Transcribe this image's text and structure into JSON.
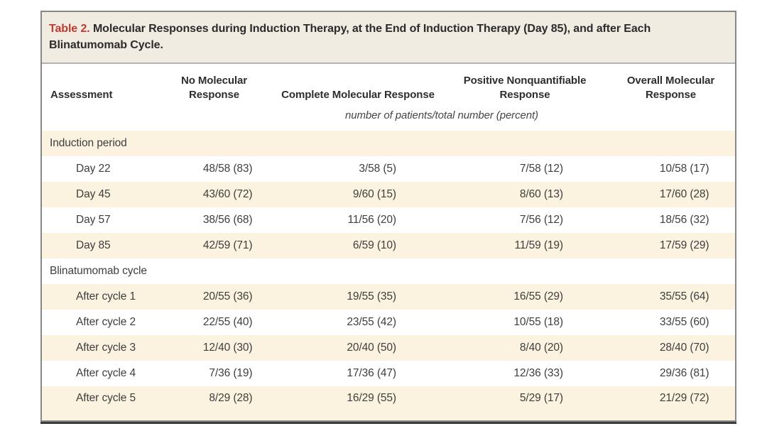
{
  "title": {
    "label": "Table 2.",
    "text": "Molecular Responses during Induction Therapy, at the End of Induction Therapy (Day 85), and after Each Blinatumomab Cycle."
  },
  "table": {
    "columns": [
      "Assessment",
      "No Molecular Response",
      "Complete Molecular Response",
      "Positive Nonquantifiable Response",
      "Overall Molecular Response"
    ],
    "units_note": "number of patients/total number (percent)",
    "rows": [
      {
        "type": "section",
        "label": "Induction period"
      },
      {
        "type": "data",
        "label": "Day 22",
        "values": [
          "48/58 (83)",
          "3/58 (5)",
          "7/58 (12)",
          "10/58 (17)"
        ]
      },
      {
        "type": "data",
        "label": "Day 45",
        "values": [
          "43/60 (72)",
          "9/60 (15)",
          "8/60 (13)",
          "17/60 (28)"
        ]
      },
      {
        "type": "data",
        "label": "Day 57",
        "values": [
          "38/56 (68)",
          "11/56 (20)",
          "7/56 (12)",
          "18/56 (32)"
        ]
      },
      {
        "type": "data",
        "label": "Day 85",
        "values": [
          "42/59 (71)",
          "6/59 (10)",
          "11/59 (19)",
          "17/59 (29)"
        ]
      },
      {
        "type": "section",
        "label": "Blinatumomab cycle"
      },
      {
        "type": "data",
        "label": "After cycle 1",
        "values": [
          "20/55 (36)",
          "19/55 (35)",
          "16/55 (29)",
          "35/55 (64)"
        ]
      },
      {
        "type": "data",
        "label": "After cycle 2",
        "values": [
          "22/55 (40)",
          "23/55 (42)",
          "10/55 (18)",
          "33/55 (60)"
        ]
      },
      {
        "type": "data",
        "label": "After cycle 3",
        "values": [
          "12/40 (30)",
          "20/40 (50)",
          "8/40 (20)",
          "28/40 (70)"
        ]
      },
      {
        "type": "data",
        "label": "After cycle 4",
        "values": [
          "7/36 (19)",
          "17/36 (47)",
          "12/36 (33)",
          "29/36 (81)"
        ]
      },
      {
        "type": "data",
        "label": "After cycle 5",
        "values": [
          "8/29 (28)",
          "16/29 (55)",
          "5/29 (17)",
          "21/29 (72)"
        ]
      }
    ]
  },
  "colors": {
    "accent_red": "#c03a2f",
    "title_bar_bg": "#f1ece2",
    "row_stripe_bg": "#fbf2df",
    "box_border": "#878787",
    "bottom_rule": "#3d3d3d"
  }
}
